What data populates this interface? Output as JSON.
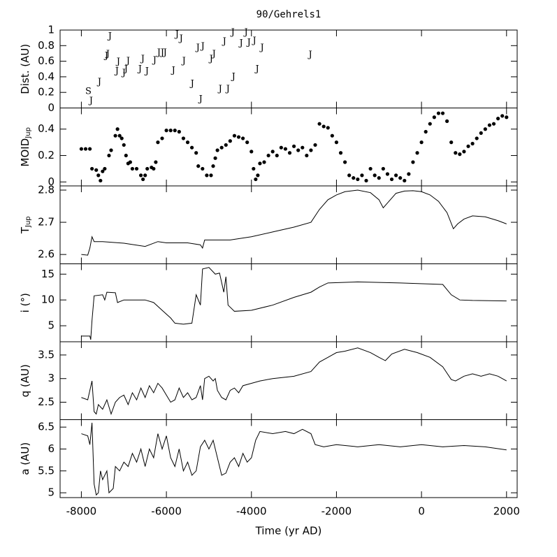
{
  "chart_data": [
    {
      "type": "scatter",
      "title": "90/Gehrels1",
      "ylabel": "Dist. (AU)",
      "x": [
        -7836,
        -7770,
        -7573,
        -7409,
        -7376,
        -7327,
        -7130,
        -7163,
        -6998,
        -6949,
        -6900,
        -6621,
        -6555,
        -6456,
        -6276,
        -6177,
        -6095,
        -6030,
        -5833,
        -5750,
        -5652,
        -5586,
        -5389,
        -5258,
        -5192,
        -5143,
        -4946,
        -4880,
        -4732,
        -4634,
        -4552,
        -4420,
        -4437,
        -4240,
        -4125,
        -4059,
        -3928,
        -3862,
        -3747,
        -2614
      ],
      "values": [
        0.21,
        0.09,
        0.33,
        0.67,
        0.69,
        0.92,
        0.59,
        0.47,
        0.45,
        0.5,
        0.6,
        0.5,
        0.63,
        0.47,
        0.61,
        0.71,
        0.71,
        0.71,
        0.48,
        0.94,
        0.89,
        0.6,
        0.31,
        0.77,
        0.11,
        0.79,
        0.63,
        0.69,
        0.24,
        0.85,
        0.24,
        0.4,
        0.97,
        0.83,
        0.97,
        0.84,
        0.86,
        0.5,
        0.77,
        0.68
      ],
      "labels": [
        "S",
        "J",
        "J",
        "J",
        "J",
        "J",
        "J",
        "J",
        "J",
        "J",
        "J",
        "J",
        "J",
        "J",
        "J",
        "J",
        "J",
        "J",
        "J",
        "J",
        "J",
        "J",
        "J",
        "J",
        "J",
        "J",
        "J",
        "J",
        "J",
        "J",
        "J",
        "J",
        "J",
        "J",
        "J",
        "J",
        "J",
        "J",
        "J",
        "J"
      ],
      "xlim": [
        -8500,
        2250
      ],
      "xticks": [
        -8000,
        -6000,
        -4000,
        -2000,
        0,
        2000
      ],
      "ylim": [
        0,
        1
      ],
      "yticks": [
        0,
        0.2,
        0.4,
        0.6,
        0.8,
        1
      ]
    },
    {
      "type": "scatter",
      "ylabel": "MOID",
      "ylabel_subscript": "Jup",
      "color": "#000000",
      "x": [
        -8000,
        -7900,
        -7800,
        -7750,
        -7650,
        -7600,
        -7550,
        -7500,
        -7450,
        -7350,
        -7300,
        -7200,
        -7150,
        -7100,
        -7050,
        -7000,
        -6950,
        -6900,
        -6850,
        -6800,
        -6700,
        -6600,
        -6550,
        -6500,
        -6450,
        -6350,
        -6300,
        -6250,
        -6200,
        -6100,
        -6000,
        -5900,
        -5800,
        -5700,
        -5600,
        -5500,
        -5400,
        -5300,
        -5250,
        -5150,
        -5050,
        -4950,
        -4900,
        -4850,
        -4800,
        -4700,
        -4600,
        -4500,
        -4400,
        -4300,
        -4200,
        -4100,
        -4000,
        -3950,
        -3900,
        -3850,
        -3800,
        -3700,
        -3600,
        -3500,
        -3400,
        -3300,
        -3200,
        -3100,
        -3000,
        -2900,
        -2800,
        -2700,
        -2600,
        -2500,
        -2400,
        -2300,
        -2200,
        -2100,
        -2000,
        -1900,
        -1800,
        -1700,
        -1600,
        -1500,
        -1400,
        -1300,
        -1200,
        -1100,
        -1000,
        -900,
        -800,
        -700,
        -600,
        -500,
        -400,
        -300,
        -200,
        -100,
        0,
        100,
        200,
        300,
        400,
        500,
        600,
        700,
        800,
        900,
        1000,
        1100,
        1200,
        1300,
        1400,
        1500,
        1600,
        1700,
        1800,
        1900,
        2000
      ],
      "values": [
        0.25,
        0.25,
        0.25,
        0.1,
        0.09,
        0.05,
        0.01,
        0.08,
        0.1,
        0.2,
        0.24,
        0.35,
        0.4,
        0.35,
        0.33,
        0.28,
        0.2,
        0.14,
        0.15,
        0.1,
        0.1,
        0.05,
        0.02,
        0.05,
        0.1,
        0.11,
        0.1,
        0.15,
        0.3,
        0.33,
        0.39,
        0.39,
        0.39,
        0.38,
        0.33,
        0.3,
        0.26,
        0.22,
        0.12,
        0.1,
        0.05,
        0.05,
        0.12,
        0.18,
        0.24,
        0.26,
        0.28,
        0.31,
        0.35,
        0.34,
        0.33,
        0.3,
        0.23,
        0.1,
        0.02,
        0.05,
        0.14,
        0.15,
        0.2,
        0.23,
        0.2,
        0.26,
        0.25,
        0.22,
        0.27,
        0.24,
        0.26,
        0.2,
        0.24,
        0.28,
        0.44,
        0.42,
        0.41,
        0.35,
        0.3,
        0.22,
        0.15,
        0.05,
        0.03,
        0.02,
        0.05,
        0.01,
        0.1,
        0.05,
        0.03,
        0.1,
        0.06,
        0.02,
        0.05,
        0.03,
        0.01,
        0.06,
        0.15,
        0.22,
        0.3,
        0.38,
        0.44,
        0.49,
        0.52,
        0.52,
        0.46,
        0.3,
        0.22,
        0.21,
        0.23,
        0.27,
        0.29,
        0.33,
        0.37,
        0.4,
        0.43,
        0.44,
        0.48,
        0.5,
        0.49
      ],
      "xlim": [
        -8500,
        2250
      ],
      "xticks": [
        -8000,
        -6000,
        -4000,
        -2000,
        0,
        2000
      ],
      "ylim": [
        -0.03,
        0.56
      ],
      "yticks": [
        0,
        0.2,
        0.4
      ]
    },
    {
      "type": "line",
      "ylabel": "T",
      "ylabel_subscript": "Jup",
      "color": "#000000",
      "x": [
        -8000,
        -7850,
        -7800,
        -7750,
        -7700,
        -7500,
        -7000,
        -6500,
        -6200,
        -6000,
        -5500,
        -5200,
        -5150,
        -5100,
        -4500,
        -4000,
        -3500,
        -3000,
        -2600,
        -2400,
        -2200,
        -2000,
        -1800,
        -1500,
        -1200,
        -1000,
        -900,
        -800,
        -600,
        -400,
        -200,
        0,
        200,
        400,
        600,
        750,
        850,
        1000,
        1200,
        1500,
        1800,
        2000
      ],
      "values": [
        2.6,
        2.598,
        2.62,
        2.655,
        2.64,
        2.64,
        2.635,
        2.625,
        2.64,
        2.636,
        2.636,
        2.63,
        2.62,
        2.645,
        2.645,
        2.655,
        2.67,
        2.685,
        2.7,
        2.74,
        2.77,
        2.785,
        2.795,
        2.8,
        2.792,
        2.77,
        2.745,
        2.76,
        2.79,
        2.797,
        2.798,
        2.795,
        2.785,
        2.765,
        2.73,
        2.68,
        2.695,
        2.71,
        2.72,
        2.717,
        2.705,
        2.695
      ],
      "xlim": [
        -8500,
        2250
      ],
      "xticks": [
        -8000,
        -6000,
        -4000,
        -2000,
        0,
        2000
      ],
      "ylim": [
        2.571,
        2.813
      ],
      "yticks": [
        2.6,
        2.7,
        2.8
      ]
    },
    {
      "type": "line",
      "ylabel": "i (°)",
      "color": "#000000",
      "x": [
        -8000,
        -7800,
        -7780,
        -7750,
        -7700,
        -7500,
        -7450,
        -7400,
        -7200,
        -7150,
        -7000,
        -6800,
        -6500,
        -6300,
        -6100,
        -5900,
        -5800,
        -5600,
        -5400,
        -5300,
        -5200,
        -5150,
        -5000,
        -4850,
        -4750,
        -4650,
        -4600,
        -4550,
        -4400,
        -4000,
        -3500,
        -3000,
        -2600,
        -2400,
        -2200,
        -1500,
        -500,
        500,
        700,
        900,
        1200,
        2000
      ],
      "values": [
        3,
        3,
        2.3,
        6,
        10.8,
        11,
        10,
        11.5,
        11.4,
        9.5,
        10,
        10,
        10,
        9.5,
        8,
        6.5,
        5.5,
        5.3,
        5.5,
        11,
        9,
        16,
        16.3,
        15,
        15.2,
        11.5,
        14.5,
        9,
        7.8,
        8,
        9,
        10.5,
        11.5,
        12.5,
        13.3,
        13.5,
        13.3,
        13.0,
        11,
        10,
        9.9,
        9.8
      ],
      "xlim": [
        -8500,
        2250
      ],
      "xticks": [
        -8000,
        -6000,
        -4000,
        -2000,
        0,
        2000
      ],
      "ylim": [
        1.9,
        17
      ],
      "yticks": [
        5,
        10,
        15
      ]
    },
    {
      "type": "line",
      "ylabel": "q (AU)",
      "color": "#000000",
      "x": [
        -8000,
        -7850,
        -7750,
        -7700,
        -7650,
        -7600,
        -7500,
        -7400,
        -7300,
        -7200,
        -7100,
        -7000,
        -6900,
        -6800,
        -6700,
        -6600,
        -6500,
        -6400,
        -6300,
        -6200,
        -6100,
        -6000,
        -5900,
        -5800,
        -5700,
        -5600,
        -5500,
        -5400,
        -5300,
        -5200,
        -5150,
        -5100,
        -5000,
        -4900,
        -4850,
        -4800,
        -4700,
        -4600,
        -4500,
        -4400,
        -4300,
        -4200,
        -4000,
        -3800,
        -3500,
        -3000,
        -2600,
        -2400,
        -2200,
        -2000,
        -1800,
        -1500,
        -1200,
        -1000,
        -850,
        -700,
        -400,
        -100,
        200,
        500,
        700,
        800,
        1000,
        1200,
        1400,
        1600,
        1800,
        2000
      ],
      "values": [
        2.6,
        2.55,
        2.95,
        2.3,
        2.25,
        2.45,
        2.35,
        2.55,
        2.25,
        2.5,
        2.6,
        2.65,
        2.45,
        2.7,
        2.55,
        2.8,
        2.6,
        2.85,
        2.7,
        2.9,
        2.8,
        2.65,
        2.5,
        2.55,
        2.8,
        2.6,
        2.7,
        2.55,
        2.6,
        2.85,
        2.55,
        3.0,
        3.05,
        2.95,
        3.0,
        2.75,
        2.6,
        2.55,
        2.75,
        2.8,
        2.7,
        2.85,
        2.9,
        2.95,
        3.0,
        3.05,
        3.15,
        3.35,
        3.45,
        3.55,
        3.58,
        3.65,
        3.55,
        3.45,
        3.38,
        3.52,
        3.62,
        3.55,
        3.45,
        3.25,
        2.98,
        2.95,
        3.05,
        3.1,
        3.05,
        3.1,
        3.05,
        2.95
      ],
      "xlim": [
        -8500,
        2250
      ],
      "xticks": [
        -8000,
        -6000,
        -4000,
        -2000,
        0,
        2000
      ],
      "ylim": [
        2.13,
        3.78
      ],
      "yticks": [
        2.5,
        3,
        3.5
      ]
    },
    {
      "type": "line",
      "ylabel": "a (AU)",
      "xlabel": "Time (yr AD)",
      "color": "#000000",
      "x": [
        -8000,
        -7850,
        -7800,
        -7750,
        -7700,
        -7650,
        -7600,
        -7550,
        -7500,
        -7400,
        -7350,
        -7250,
        -7200,
        -7100,
        -7000,
        -6900,
        -6800,
        -6700,
        -6600,
        -6500,
        -6400,
        -6300,
        -6200,
        -6100,
        -6000,
        -5900,
        -5800,
        -5700,
        -5600,
        -5500,
        -5400,
        -5300,
        -5200,
        -5100,
        -5000,
        -4900,
        -4800,
        -4700,
        -4600,
        -4500,
        -4400,
        -4300,
        -4200,
        -4100,
        -4000,
        -3900,
        -3800,
        -3500,
        -3200,
        -3000,
        -2800,
        -2600,
        -2500,
        -2300,
        -2000,
        -1500,
        -1000,
        -500,
        0,
        500,
        1000,
        1500,
        2000
      ],
      "values": [
        6.35,
        6.3,
        6.1,
        6.6,
        5.2,
        4.95,
        5.0,
        5.5,
        5.3,
        5.5,
        5.0,
        5.1,
        5.6,
        5.5,
        5.7,
        5.6,
        5.9,
        5.7,
        6.0,
        5.6,
        6.0,
        5.8,
        6.35,
        6.0,
        6.3,
        5.8,
        5.6,
        6.0,
        5.5,
        5.7,
        5.4,
        5.5,
        6.05,
        6.2,
        6.0,
        6.2,
        5.8,
        5.4,
        5.45,
        5.7,
        5.8,
        5.6,
        5.9,
        5.7,
        5.8,
        6.2,
        6.4,
        6.35,
        6.4,
        6.35,
        6.45,
        6.35,
        6.1,
        6.05,
        6.1,
        6.05,
        6.1,
        6.05,
        6.1,
        6.05,
        6.08,
        6.05,
        5.98
      ],
      "xlim": [
        -8500,
        2250
      ],
      "xticks": [
        -8000,
        -6000,
        -4000,
        -2000,
        0,
        2000
      ],
      "ylim": [
        4.89,
        6.67
      ],
      "yticks": [
        5,
        5.5,
        6,
        6.5
      ]
    }
  ]
}
